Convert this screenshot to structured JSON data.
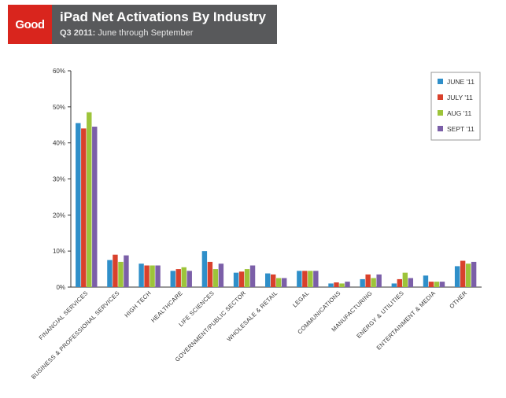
{
  "header": {
    "logo_text": "Good",
    "title": "iPad Net Activations By Industry",
    "subtitle_bold": "Q3 2011:",
    "subtitle_rest": " June through September"
  },
  "chart_data": {
    "type": "bar",
    "title": "iPad Net Activations By Industry",
    "subtitle": "Q3 2011: June through September",
    "xlabel": "",
    "ylabel": "",
    "ylim": [
      0,
      60
    ],
    "yticks": [
      "0%",
      "10%",
      "20%",
      "30%",
      "40%",
      "50%",
      "60%"
    ],
    "grid": false,
    "legend_position": "top-right",
    "categories": [
      "FINANCIAL SERVICES",
      "BUSINESS & PROFESSIONAL SERVICES",
      "HIGH TECH",
      "HEALTHCARE",
      "LIFE SCIENCES",
      "GOVERNMENT/PUBLIC SECTOR",
      "WHOLESALE & RETAIL",
      "LEGAL",
      "COMMUNICATIONS",
      "MANUFACTURING",
      "ENERGY & UTILITIES",
      "ENTERTAINMENT & MEDIA",
      "OTHER"
    ],
    "series": [
      {
        "name": "JUNE '11",
        "color": "#2f8fc9",
        "values": [
          45.5,
          7.5,
          6.5,
          4.5,
          10.0,
          4.0,
          3.8,
          4.5,
          1.0,
          2.2,
          1.0,
          3.2,
          5.8
        ]
      },
      {
        "name": "JULY '11",
        "color": "#d9412c",
        "values": [
          44.0,
          9.0,
          6.0,
          5.0,
          7.0,
          4.3,
          3.5,
          4.5,
          1.3,
          3.5,
          2.2,
          1.5,
          7.3
        ]
      },
      {
        "name": "AUG '11",
        "color": "#9dc43a",
        "values": [
          48.5,
          7.0,
          6.0,
          5.5,
          5.0,
          5.0,
          2.5,
          4.5,
          1.0,
          2.5,
          4.0,
          1.5,
          6.5
        ]
      },
      {
        "name": "SEPT '11",
        "color": "#7b5fa8",
        "values": [
          44.5,
          8.8,
          6.0,
          4.5,
          6.5,
          6.0,
          2.5,
          4.5,
          1.5,
          3.5,
          2.5,
          1.5,
          7.0
        ]
      }
    ]
  }
}
